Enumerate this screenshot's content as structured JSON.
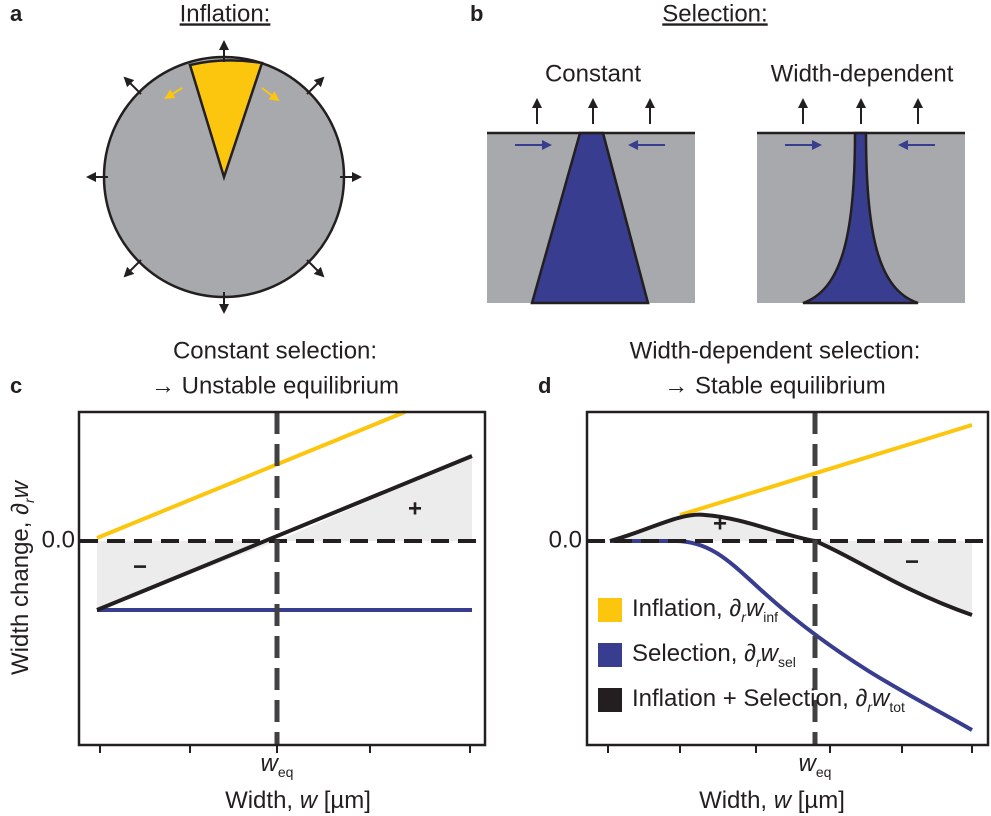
{
  "panels": {
    "a": {
      "label": "a",
      "title": "Inflation:"
    },
    "b": {
      "label": "b",
      "title": "Selection:",
      "left": "Constant",
      "right": "Width-dependent"
    },
    "c": {
      "label": "c",
      "title1": "Constant selection:",
      "title2": "→ Unstable equilibrium",
      "ylabel": {
        "text": "Width change, ∂",
        "sub": "r",
        "var": "w"
      },
      "zero": "0.0",
      "minus": "−",
      "plus": "+",
      "weq": {
        "var": "w",
        "sub": "eq"
      },
      "xlabel": {
        "text": "Width, ",
        "var": "w",
        "unit": " [µm]"
      }
    },
    "d": {
      "label": "d",
      "title1": "Width-dependent selection:",
      "title2": "→ Stable equilibrium",
      "zero": "0.0",
      "minus": "−",
      "plus": "+",
      "weq": {
        "var": "w",
        "sub": "eq"
      },
      "xlabel": {
        "text": "Width, ",
        "var": "w",
        "unit": " [µm]"
      },
      "legend": [
        {
          "text": "Inflation, ∂",
          "sub1": "r",
          "var": "w",
          "sub2": "inf"
        },
        {
          "text": "Selection, ∂",
          "sub1": "r",
          "var": "w",
          "sub2": "sel"
        },
        {
          "text": "Inflation + Selection, ∂",
          "sub1": "r",
          "var": "w",
          "sub2": "tot"
        }
      ]
    }
  }
}
